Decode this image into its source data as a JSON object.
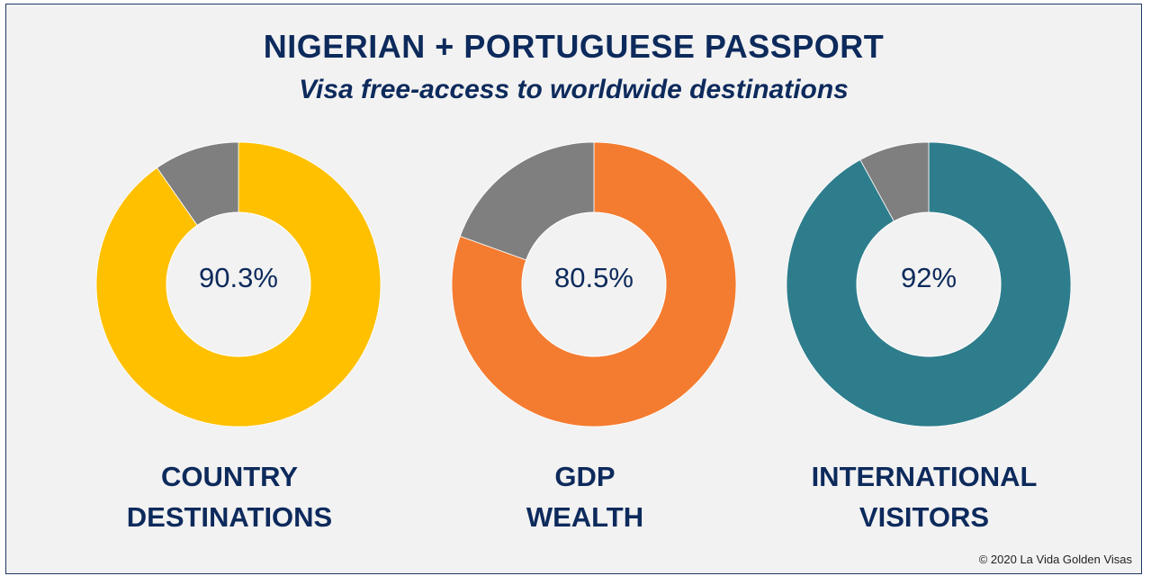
{
  "title": "NIGERIAN + PORTUGUESE PASSPORT",
  "subtitle": "Visa free-access to worldwide destinations",
  "copyright": "© 2020 La Vida Golden Visas",
  "colors": {
    "remainder": "#7f7f7f",
    "text": "#0d2a5c"
  },
  "chart_data": [
    {
      "type": "pie",
      "label": "90.3%",
      "caption": [
        "COUNTRY",
        "DESTINATIONS"
      ],
      "values": [
        90.3,
        9.7
      ],
      "color": "#ffc000"
    },
    {
      "type": "pie",
      "label": "80.5%",
      "caption": [
        "GDP",
        "WEALTH"
      ],
      "values": [
        80.5,
        19.5
      ],
      "color": "#f47c30"
    },
    {
      "type": "pie",
      "label": "92%",
      "caption": [
        "INTERNATIONAL",
        "VISITORS"
      ],
      "values": [
        92,
        8
      ],
      "color": "#2e7d8c"
    }
  ]
}
